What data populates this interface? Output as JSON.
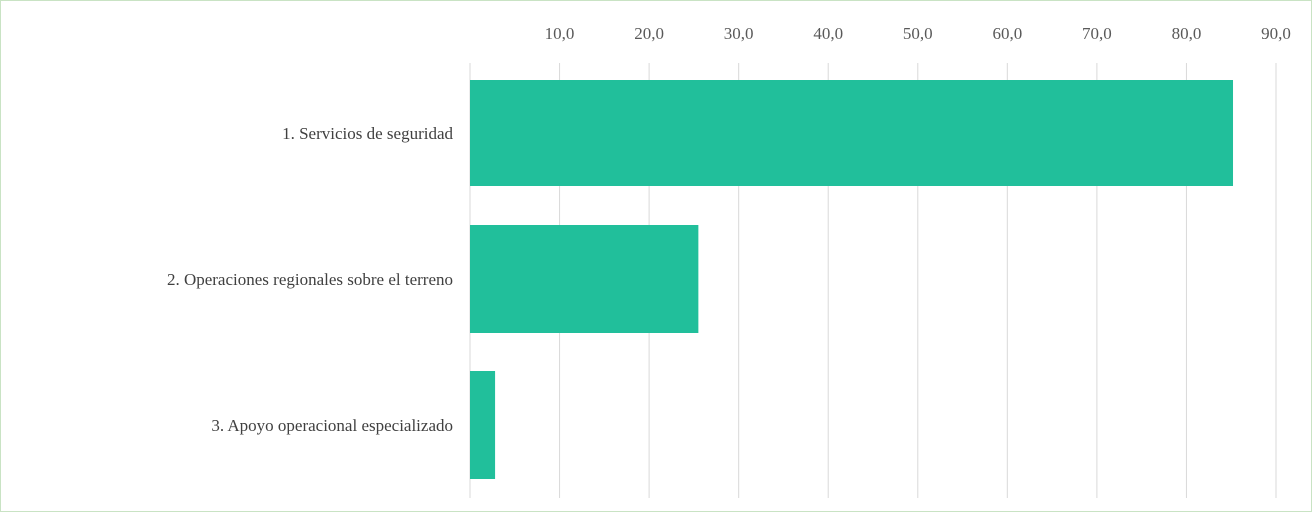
{
  "chart_data": {
    "type": "bar",
    "orientation": "horizontal",
    "categories": [
      "1. Servicios de seguridad",
      "2. Operaciones regionales sobre el terreno",
      "3. Apoyo operacional especializado"
    ],
    "values": [
      85.2,
      25.5,
      2.8
    ],
    "xlim": [
      0,
      90
    ],
    "x_ticks": [
      10,
      20,
      30,
      40,
      50,
      60,
      70,
      80,
      90
    ],
    "x_tick_labels": [
      "10,0",
      "20,0",
      "30,0",
      "40,0",
      "50,0",
      "60,0",
      "70,0",
      "80,0",
      "90,0"
    ],
    "x_axis_position": "top",
    "grid": true,
    "legend": "none",
    "bar_color": "#21bf9b",
    "frame_color": "#c9e3c4",
    "grid_color": "#d9d9d9"
  }
}
